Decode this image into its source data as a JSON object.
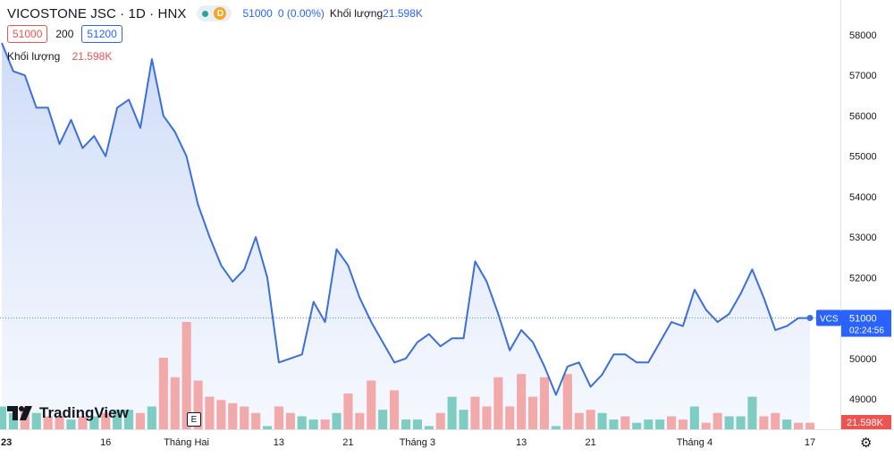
{
  "header": {
    "title": "VICOSTONE JSC · 1D · HNX",
    "d_badge": "D",
    "value": "51000",
    "change": "0 (0.00%)",
    "volume_label": "Khối lượng",
    "volume_value": "21.598K"
  },
  "ohlc_row": {
    "bid": "51000",
    "spread": "200",
    "ask": "51200"
  },
  "volume_row": {
    "label": "Khối lượng",
    "value": "21.598K"
  },
  "logo": {
    "text": "TradingView"
  },
  "event_marker": "E",
  "price_label": {
    "symbol": "VCS",
    "price": "51000",
    "countdown": "02:24:56"
  },
  "volume_label": "21.598K",
  "colors": {
    "line": "#3b6fd9",
    "fill": "#dbe5fb",
    "vol_up": "#7fcdc2",
    "vol_down": "#f2a9a9",
    "accent_blue": "#2962ff",
    "accent_red": "#ef5350"
  },
  "chart_data": {
    "type": "line",
    "title": "VICOSTONE JSC · 1D · HNX",
    "ylim": [
      48500,
      58300
    ],
    "y_ticks": [
      49000,
      50000,
      51000,
      52000,
      53000,
      54000,
      55000,
      56000,
      57000,
      58000
    ],
    "x_tick_labels": [
      {
        "label": "23",
        "index": 0
      },
      {
        "label": "16",
        "index": 9
      },
      {
        "label": "Tháng Hai",
        "index": 16
      },
      {
        "label": "13",
        "index": 24
      },
      {
        "label": "21",
        "index": 30
      },
      {
        "label": "Tháng 3",
        "index": 36
      },
      {
        "label": "13",
        "index": 45
      },
      {
        "label": "21",
        "index": 51
      },
      {
        "label": "Tháng 4",
        "index": 60
      },
      {
        "label": "17",
        "index": 70
      }
    ],
    "series": [
      {
        "values": [
          57800,
          57100,
          57000,
          56200,
          56200,
          55300,
          55900,
          55200,
          55500,
          55000,
          56200,
          56400,
          55700,
          57400,
          56000,
          55600,
          55000,
          53800,
          53000,
          52300,
          51900,
          52200,
          53000,
          52000,
          49900,
          50000,
          50100,
          51400,
          50900,
          52700,
          52300,
          51500,
          50900,
          50400,
          49900,
          50000,
          50400,
          50600,
          50300,
          50500,
          50500,
          52400,
          51900,
          51100,
          50200,
          50700,
          50400,
          49800,
          49100,
          49800,
          49900,
          49300,
          49600,
          50100,
          50100,
          49900,
          49900,
          50400,
          50900,
          50800,
          51700,
          51200,
          50900,
          51100,
          51600,
          52200,
          51500,
          50700,
          50800,
          51000,
          51000
        ]
      }
    ],
    "volume": {
      "values": [
        7,
        5,
        6,
        5,
        4,
        4,
        3,
        4,
        4,
        5,
        6,
        6,
        5,
        7,
        22,
        16,
        33,
        15,
        10,
        9,
        8,
        7,
        5,
        1,
        7,
        5,
        4,
        3,
        3,
        5,
        11,
        5,
        15,
        6,
        12,
        3,
        3,
        1,
        5,
        10,
        6,
        10,
        7,
        16,
        7,
        17,
        10,
        16,
        1,
        17,
        5,
        6,
        5,
        3,
        4,
        2,
        3,
        3,
        4,
        3,
        7,
        2,
        5,
        4,
        4,
        10,
        4,
        5,
        3,
        2,
        2
      ],
      "direction": [
        "u",
        "u",
        "d",
        "u",
        "d",
        "d",
        "u",
        "d",
        "u",
        "d",
        "u",
        "u",
        "d",
        "u",
        "d",
        "d",
        "d",
        "d",
        "d",
        "d",
        "d",
        "d",
        "d",
        "u",
        "d",
        "d",
        "u",
        "u",
        "d",
        "u",
        "d",
        "d",
        "d",
        "u",
        "d",
        "u",
        "u",
        "u",
        "d",
        "u",
        "u",
        "d",
        "d",
        "d",
        "d",
        "d",
        "d",
        "d",
        "u",
        "d",
        "d",
        "d",
        "u",
        "u",
        "d",
        "u",
        "u",
        "u",
        "d",
        "d",
        "u",
        "d",
        "d",
        "u",
        "u",
        "u",
        "d",
        "d",
        "u",
        "d",
        "d"
      ]
    }
  }
}
